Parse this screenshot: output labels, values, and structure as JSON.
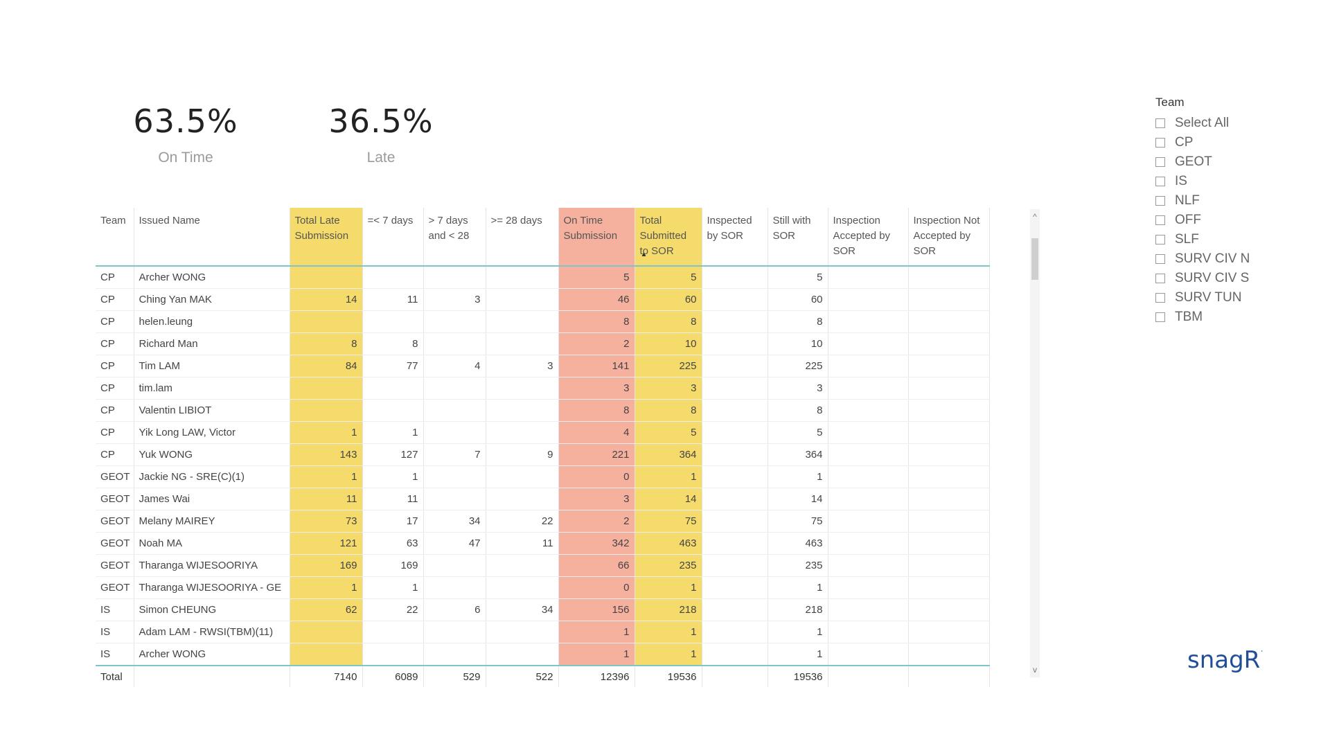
{
  "kpis": {
    "on_time": {
      "value": "63.5%",
      "label": "On Time"
    },
    "late": {
      "value": "36.5%",
      "label": "Late"
    }
  },
  "table": {
    "columns": [
      "Team",
      "Issued Name",
      "Total Late Submission",
      "=< 7 days",
      "> 7 days and < 28",
      ">= 28 days",
      "On Time Submission",
      "Total Submitted to SOR",
      "Inspected by SOR",
      "Still with SOR",
      "Inspection Accepted by SOR",
      "Inspection Not Accepted by SOR"
    ],
    "rows": [
      [
        "CP",
        "Archer WONG",
        "",
        "",
        "",
        "",
        "5",
        "5",
        "",
        "5",
        "",
        ""
      ],
      [
        "CP",
        "Ching Yan MAK",
        "14",
        "11",
        "3",
        "",
        "46",
        "60",
        "",
        "60",
        "",
        ""
      ],
      [
        "CP",
        "helen.leung",
        "",
        "",
        "",
        "",
        "8",
        "8",
        "",
        "8",
        "",
        ""
      ],
      [
        "CP",
        "Richard Man",
        "8",
        "8",
        "",
        "",
        "2",
        "10",
        "",
        "10",
        "",
        ""
      ],
      [
        "CP",
        "Tim LAM",
        "84",
        "77",
        "4",
        "3",
        "141",
        "225",
        "",
        "225",
        "",
        ""
      ],
      [
        "CP",
        "tim.lam",
        "",
        "",
        "",
        "",
        "3",
        "3",
        "",
        "3",
        "",
        ""
      ],
      [
        "CP",
        "Valentin LIBIOT",
        "",
        "",
        "",
        "",
        "8",
        "8",
        "",
        "8",
        "",
        ""
      ],
      [
        "CP",
        "Yik Long LAW, Victor",
        "1",
        "1",
        "",
        "",
        "4",
        "5",
        "",
        "5",
        "",
        ""
      ],
      [
        "CP",
        "Yuk WONG",
        "143",
        "127",
        "7",
        "9",
        "221",
        "364",
        "",
        "364",
        "",
        ""
      ],
      [
        "GEOT",
        "Jackie NG - SRE(C)(1)",
        "1",
        "1",
        "",
        "",
        "0",
        "1",
        "",
        "1",
        "",
        ""
      ],
      [
        "GEOT",
        "James Wai",
        "11",
        "11",
        "",
        "",
        "3",
        "14",
        "",
        "14",
        "",
        ""
      ],
      [
        "GEOT",
        "Melany MAIREY",
        "73",
        "17",
        "34",
        "22",
        "2",
        "75",
        "",
        "75",
        "",
        ""
      ],
      [
        "GEOT",
        "Noah MA",
        "121",
        "63",
        "47",
        "11",
        "342",
        "463",
        "",
        "463",
        "",
        ""
      ],
      [
        "GEOT",
        "Tharanga WIJESOORIYA",
        "169",
        "169",
        "",
        "",
        "66",
        "235",
        "",
        "235",
        "",
        ""
      ],
      [
        "GEOT",
        "Tharanga WIJESOORIYA - GE",
        "1",
        "1",
        "",
        "",
        "0",
        "1",
        "",
        "1",
        "",
        ""
      ],
      [
        "IS",
        "Simon CHEUNG",
        "62",
        "22",
        "6",
        "34",
        "156",
        "218",
        "",
        "218",
        "",
        ""
      ],
      [
        "IS",
        "Adam LAM - RWSI(TBM)(11)",
        "",
        "",
        "",
        "",
        "1",
        "1",
        "",
        "1",
        "",
        ""
      ],
      [
        "IS",
        "Archer WONG",
        "",
        "",
        "",
        "",
        "1",
        "1",
        "",
        "1",
        "",
        ""
      ]
    ],
    "total": [
      "Total",
      "",
      "7140",
      "6089",
      "529",
      "522",
      "12396",
      "19536",
      "",
      "19536",
      "",
      ""
    ]
  },
  "slicer": {
    "title": "Team",
    "options": [
      "Select All",
      "CP",
      "GEOT",
      "IS",
      "NLF",
      "OFF",
      "SLF",
      "SURV CIV N",
      "SURV CIV S",
      "SURV TUN",
      "TBM"
    ]
  },
  "scroll": {
    "up_glyph": "^",
    "down_glyph": "v"
  },
  "logo": {
    "text": "snagR"
  },
  "colors": {
    "late_highlight": "#f5db6c",
    "ontime_highlight": "#f6b19e",
    "header_rule": "#7fc4c6",
    "logo": "#1f4f99"
  }
}
